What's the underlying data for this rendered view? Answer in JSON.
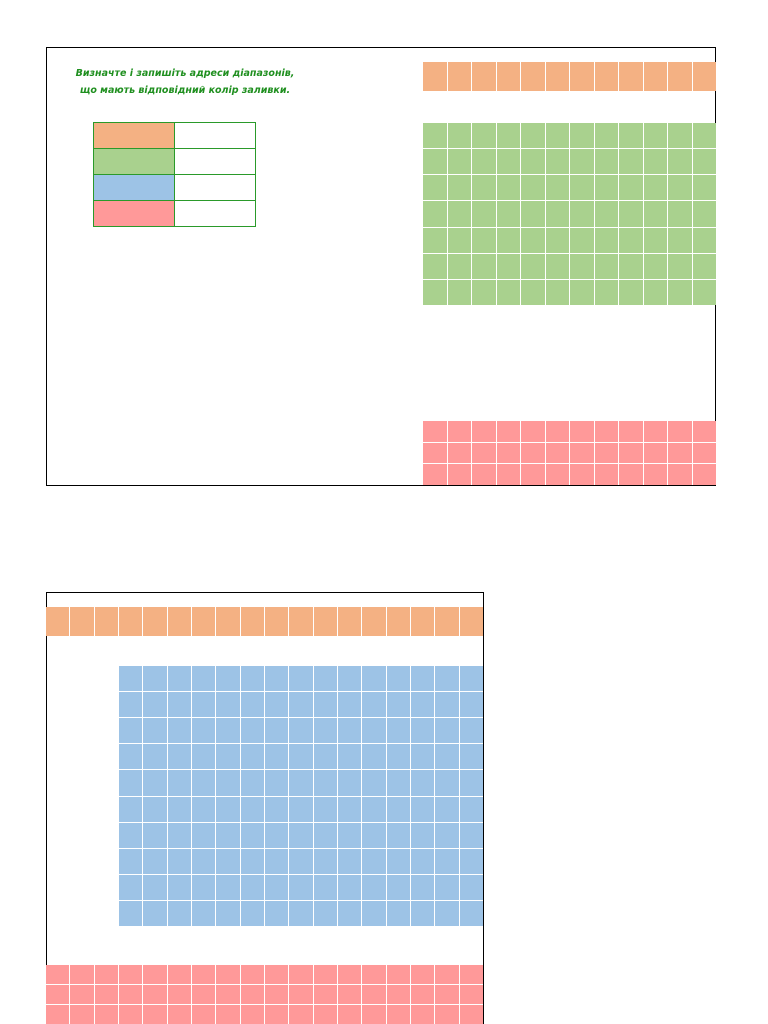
{
  "worksheet": {
    "instruction_lines": [
      "Визначте і запишіть адреси діапазонів,",
      "що мають відповідний колір заливки."
    ]
  },
  "colors": {
    "orange": "#f4b183",
    "green": "#a9d18e",
    "blue": "#9dc3e6",
    "red": "#ff9999"
  },
  "legend": [
    {
      "color_name": "orange",
      "answer": ""
    },
    {
      "color_name": "green",
      "answer": ""
    },
    {
      "color_name": "blue",
      "answer": ""
    },
    {
      "color_name": "red",
      "answer": ""
    }
  ],
  "ranges": [
    {
      "name": "orange-range-top",
      "color_name": "orange",
      "rows": 1,
      "cols": 12
    },
    {
      "name": "green-range-top",
      "color_name": "green",
      "rows": 7,
      "cols": 12
    },
    {
      "name": "red-range-top",
      "color_name": "red",
      "rows": 3,
      "cols": 12
    },
    {
      "name": "orange-range-bottom",
      "color_name": "orange",
      "rows": 1,
      "cols": 18
    },
    {
      "name": "blue-range-bottom",
      "color_name": "blue",
      "rows": 10,
      "cols": 15
    },
    {
      "name": "red-range-bottom",
      "color_name": "red",
      "rows": 3,
      "cols": 18
    }
  ]
}
